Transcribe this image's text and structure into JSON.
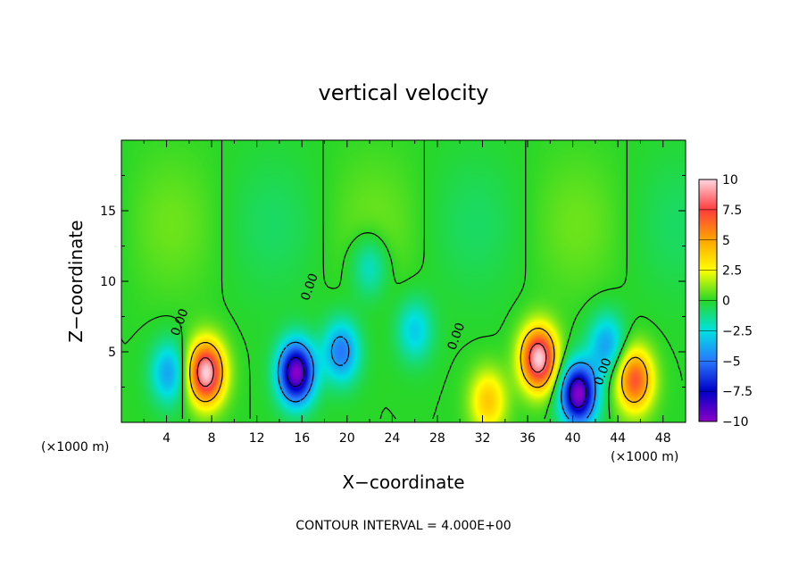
{
  "chart_data": {
    "type": "heatmap",
    "title": "vertical velocity",
    "xlabel": "X−coordinate",
    "ylabel": "Z−coordinate",
    "x_unit": "(×1000 m)",
    "z_unit": "(×1000 m)",
    "xlim": [
      0,
      50
    ],
    "ylim": [
      0,
      20
    ],
    "x_ticks": [
      4,
      8,
      12,
      16,
      20,
      24,
      28,
      32,
      36,
      40,
      44,
      48
    ],
    "y_ticks": [
      5,
      10,
      15
    ],
    "colorbar": {
      "min": -10,
      "max": 10,
      "ticks": [
        10,
        7.5,
        5,
        2.5,
        0,
        -2.5,
        -5,
        -7.5,
        -10
      ],
      "tick_labels": [
        "10",
        "7.5",
        "5",
        "2.5",
        "0",
        "−2.5",
        "−5",
        "−7.5",
        "−10"
      ],
      "placement": "right"
    },
    "contour_label": "0.00",
    "contour_interval_label": "CONTOUR INTERVAL = 4.000E+00",
    "features": [
      {
        "x": 4.2,
        "z": 3.5,
        "value": -4
      },
      {
        "x": 7.5,
        "z": 3.5,
        "value": 10
      },
      {
        "x": 15.5,
        "z": 3.5,
        "value": -10
      },
      {
        "x": 19.5,
        "z": 5,
        "value": -5
      },
      {
        "x": 26,
        "z": 6.5,
        "value": -3
      },
      {
        "x": 37,
        "z": 4.5,
        "value": 10
      },
      {
        "x": 40.5,
        "z": 2,
        "value": -10
      },
      {
        "x": 45.5,
        "z": 3,
        "value": 7
      },
      {
        "x": 43,
        "z": 5.5,
        "value": -4
      },
      {
        "x": 32.5,
        "z": 1.5,
        "value": 4
      },
      {
        "x": 22,
        "z": 11,
        "value": -2.5
      }
    ]
  }
}
